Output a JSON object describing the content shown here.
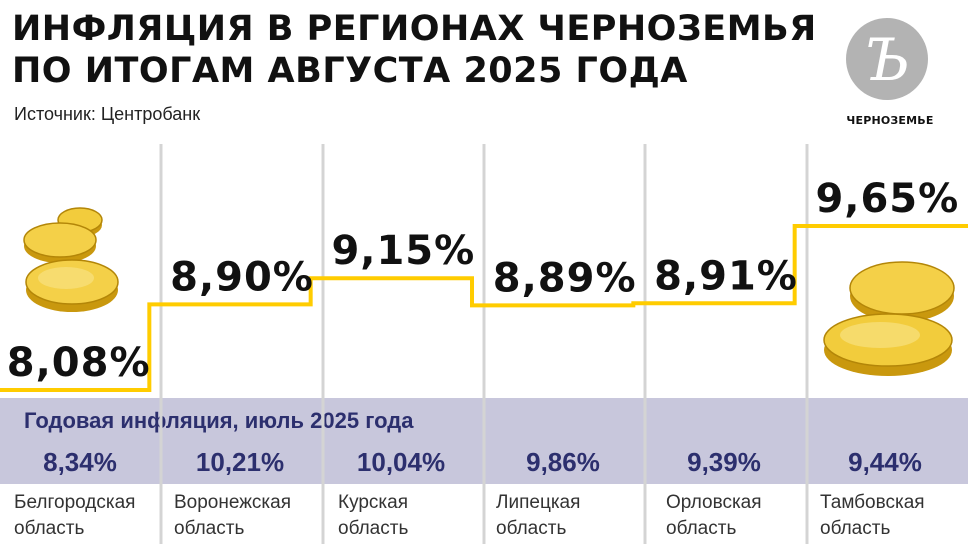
{
  "header": {
    "title_line1": "ИНФЛЯЦИЯ В РЕГИОНАХ ЧЕРНОЗЕМЬЯ",
    "title_line2": "ПО ИТОГАМ АВГУСТА 2025 ГОДА",
    "source": "Источник: Центробанк"
  },
  "logo": {
    "letter": "Ъ",
    "caption": "ЧЕРНОЗЕМЬЕ"
  },
  "colors": {
    "step_line": "#ffcc00",
    "band": "#c8c7dc",
    "band_text": "#2c2f6e",
    "divider": "#d4d4d4",
    "coin": "#e6b820"
  },
  "icons": [
    "coin-stack-icon",
    "coin-pile-icon"
  ],
  "chart_data": {
    "type": "line",
    "step": true,
    "categories": [
      "Белгородская область",
      "Воронежская область",
      "Курская область",
      "Липецкая область",
      "Орловская область",
      "Тамбовская область"
    ],
    "series": [
      {
        "values": [
          8.08,
          8.9,
          9.15,
          8.89,
          8.91,
          9.65
        ]
      }
    ],
    "value_labels": [
      "8,08%",
      "8,90%",
      "9,15%",
      "8,89%",
      "8,91%",
      "9,65%"
    ],
    "title": "ИНФЛЯЦИЯ В РЕГИОНАХ ЧЕРНОЗЕМЬЯ ПО ИТОГАМ АВГУСТА 2025 ГОДА",
    "xlabel": "",
    "ylabel": ""
  },
  "band": {
    "label": "Годовая инфляция, июль 2025 года",
    "values": [
      "8,34%",
      "10,21%",
      "10,04%",
      "9,86%",
      "9,39%",
      "9,44%"
    ]
  },
  "regions": [
    {
      "line1": "Белгородская",
      "line2": "область"
    },
    {
      "line1": "Воронежская",
      "line2": "область"
    },
    {
      "line1": "Курская",
      "line2": "область"
    },
    {
      "line1": "Липецкая",
      "line2": "область"
    },
    {
      "line1": "Орловская",
      "line2": "область"
    },
    {
      "line1": "Тамбовская",
      "line2": "область"
    }
  ]
}
